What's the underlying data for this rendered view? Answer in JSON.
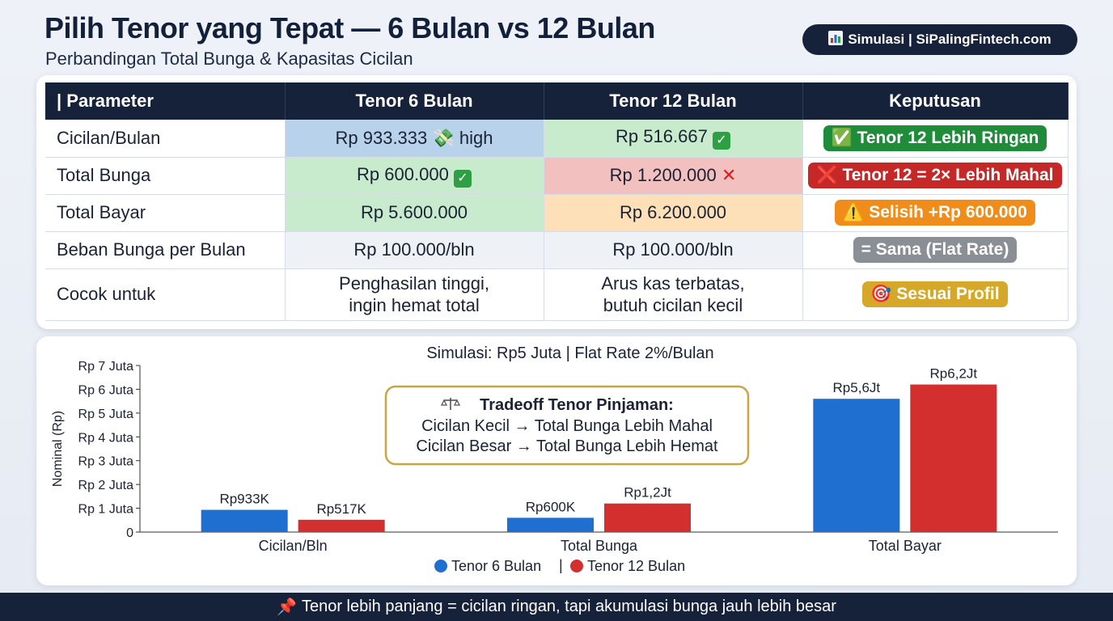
{
  "header": {
    "title": "Pilih Tenor yang Tepat — 6 Bulan vs 12 Bulan",
    "subtitle": "Perbandingan Total Bunga & Kapasitas Cicilan",
    "badge_icon": "bar-chart-icon",
    "badge_text": "Simulasi | SiPalingFintech.com"
  },
  "table": {
    "headers": [
      "| Parameter",
      "Tenor 6 Bulan",
      "Tenor 12 Bulan",
      "Keputusan"
    ],
    "rows": [
      {
        "param": "Cicilan/Bulan",
        "t6": "Rp 933.333 💸 high",
        "t12": "Rp 516.667",
        "t12_icon": "check-icon",
        "decision": "✅ Tenor 12 Lebih Ringan"
      },
      {
        "param": "Total Bunga",
        "t6": "Rp 600.000",
        "t6_icon": "check-icon",
        "t12": "Rp 1.200.000",
        "t12_icon": "cross-icon",
        "decision": "❌ Tenor 12 = 2× Lebih Mahal"
      },
      {
        "param": "Total Bayar",
        "t6": "Rp 5.600.000",
        "t12": "Rp 6.200.000",
        "decision": "⚠️ Selisih +Rp 600.000"
      },
      {
        "param": "Beban Bunga per Bulan",
        "t6": "Rp 100.000/bln",
        "t12": "Rp 100.000/bln",
        "decision": "= Sama (Flat Rate)"
      },
      {
        "param": "Cocok untuk",
        "t6_line1": "Penghasilan tinggi,",
        "t6_line2": "ingin hemat total",
        "t12_line1": "Arus kas terbatas,",
        "t12_line2": "butuh cicilan kecil",
        "decision": "🎯 Sesuai Profil"
      }
    ],
    "colors": {
      "blue": "#b9d2ec",
      "green": "#c7ebcc",
      "red": "#f3c0c0",
      "orange": "#fde0b8"
    }
  },
  "chart_data": {
    "type": "bar",
    "title": "Simulasi: Rp5 Juta | Flat Rate 2%/Bulan",
    "ylabel": "Nominal (Rp)",
    "xlabel": "",
    "ylim": [
      0,
      7000000
    ],
    "yticks": [
      0,
      1000000,
      2000000,
      3000000,
      4000000,
      5000000,
      6000000,
      7000000
    ],
    "ytick_labels": [
      "0",
      "Rp 1 Juta",
      "Rp 2 Juta",
      "Rp 3 Juta",
      "Rp 4 Juta",
      "Rp 5 Juta",
      "Rp 6 Juta",
      "Rp 7 Juta"
    ],
    "categories": [
      "Cicilan/Bln",
      "Total Bunga",
      "Total Bayar"
    ],
    "series": [
      {
        "name": "Tenor 6 Bulan",
        "color": "#1f6fd1",
        "values": [
          933333,
          600000,
          5600000
        ],
        "labels": [
          "Rp933K",
          "Rp600K",
          "Rp5,6Jt"
        ]
      },
      {
        "name": "Tenor 12 Bulan",
        "color": "#d32f2f",
        "values": [
          516667,
          1200000,
          6200000
        ],
        "labels": [
          "Rp517K",
          "Rp1,2Jt",
          "Rp6,2Jt"
        ]
      }
    ],
    "legend_position": "bottom-center",
    "grid": false,
    "annotation": {
      "icon": "balance-scale-icon",
      "title": "Tradeoff Tenor Pinjaman:",
      "line1": "Cicilan Kecil → Total Bunga Lebih Mahal",
      "line2": "Cicilan Besar → Total Bunga Lebih Hemat"
    }
  },
  "footer": {
    "icon": "pin-icon",
    "text": "Tenor lebih panjang = cicilan ringan, tapi akumulasi bunga jauh lebih besar"
  }
}
